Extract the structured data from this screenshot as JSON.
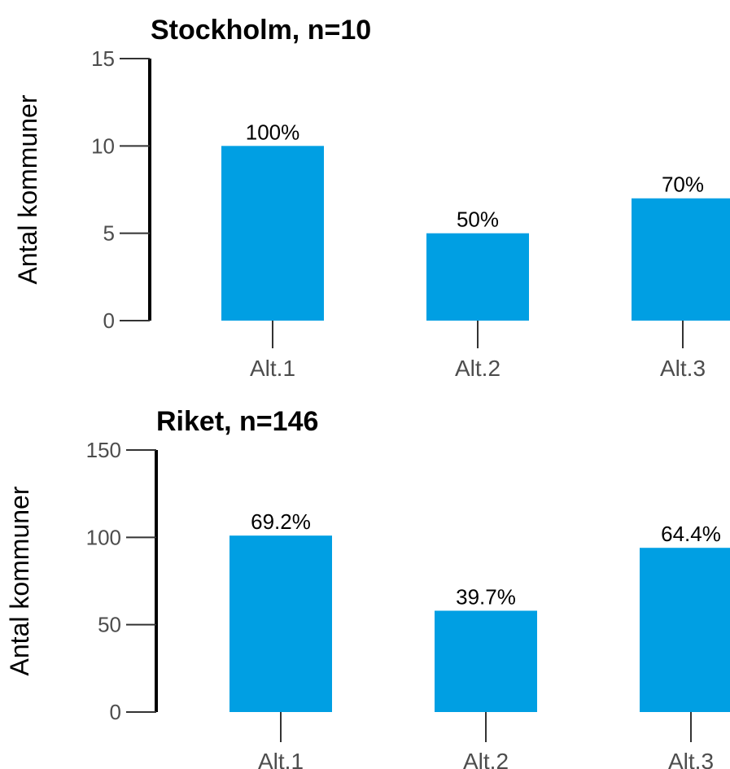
{
  "colors": {
    "bar": "#009FE3",
    "text": "#000000",
    "tick_text": "#4d4d4d"
  },
  "chart_data": [
    {
      "type": "bar",
      "title": "Stockholm, n=10",
      "ylabel": "Antal kommuner",
      "xlabel": "",
      "ylim": [
        0,
        15
      ],
      "yticks": [
        0,
        5,
        10,
        15
      ],
      "categories": [
        "Alt.1",
        "Alt.2",
        "Alt.3"
      ],
      "values": [
        10,
        5,
        7
      ],
      "data_labels": [
        "100%",
        "50%",
        "70%"
      ],
      "grid": false,
      "legend": "none"
    },
    {
      "type": "bar",
      "title": "Riket, n=146",
      "ylabel": "Antal kommuner",
      "xlabel": "",
      "ylim": [
        0,
        150
      ],
      "yticks": [
        0,
        50,
        100,
        150
      ],
      "categories": [
        "Alt.1",
        "Alt.2",
        "Alt.3"
      ],
      "values": [
        101,
        58,
        94
      ],
      "data_labels": [
        "69.2%",
        "39.7%",
        "64.4%"
      ],
      "grid": false,
      "legend": "none"
    }
  ]
}
